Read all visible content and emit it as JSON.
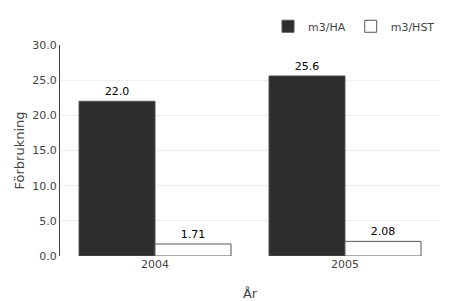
{
  "chart_data": {
    "type": "bar",
    "xlabel": "År",
    "ylabel": "Förbrukning",
    "categories": [
      "2004",
      "2005"
    ],
    "series": [
      {
        "name": "m3/HA",
        "color": "#2d2d2d",
        "values": [
          22.0,
          25.6
        ],
        "value_labels": [
          "22.0",
          "25.6"
        ]
      },
      {
        "name": "m3/HST",
        "color": "#ffffff",
        "values": [
          1.71,
          2.08
        ]
      }
    ],
    "ylim": [
      0,
      30
    ],
    "yticks": [
      {
        "value": 0,
        "label": "0.0"
      },
      {
        "value": 5,
        "label": "5.0"
      },
      {
        "value": 10,
        "label": "10.0"
      },
      {
        "value": 15,
        "label": "15.0"
      },
      {
        "value": 20,
        "label": "20.0"
      },
      {
        "value": 25,
        "label": "25.0"
      },
      {
        "value": 30,
        "label": "30.0"
      }
    ],
    "grid": true,
    "legend": "upper right",
    "data_labels": true
  }
}
